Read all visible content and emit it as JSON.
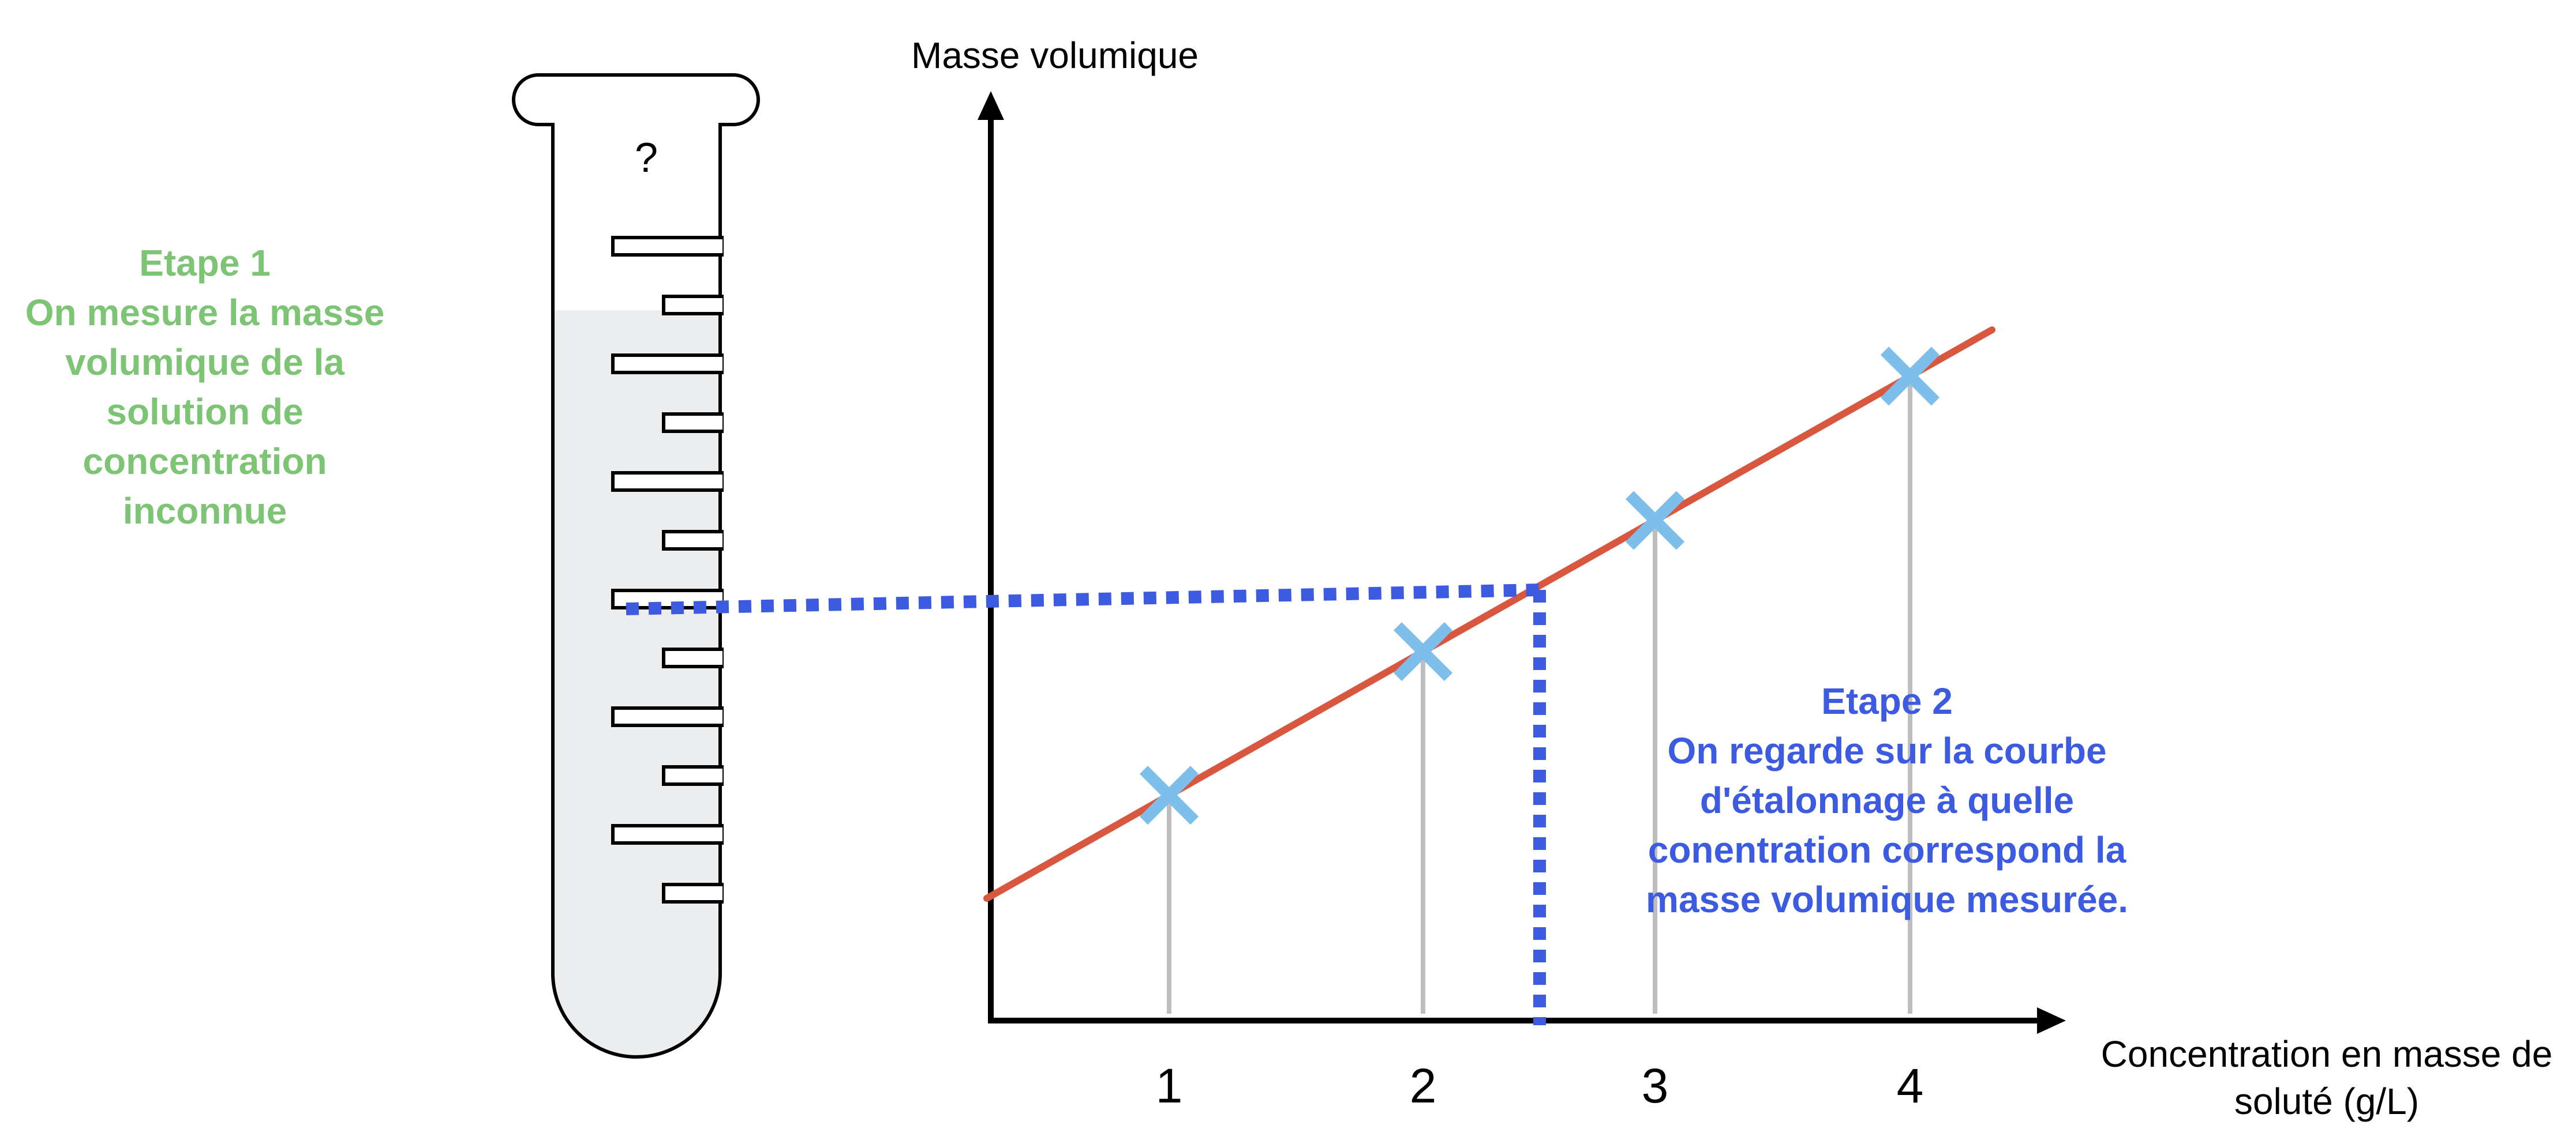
{
  "step1": {
    "lines": [
      "Etape 1",
      "On mesure la masse",
      "volumique de la",
      "solution de",
      "concentration",
      "inconnue"
    ],
    "color": "#7DC475"
  },
  "step2": {
    "lines": [
      "Etape 2",
      "On regarde sur la courbe",
      "d'étalonnage à quelle",
      "conentration correspond la",
      "masse volumique mesurée."
    ],
    "color": "#3C5BE0"
  },
  "tube": {
    "label": "?",
    "liquid_color": "#ECEDEF"
  },
  "chart_data": {
    "type": "line",
    "ylabel": "Masse volumique",
    "xlabel_lines": [
      "Concentration en masse de",
      "soluté (g/L)"
    ],
    "x_ticks": [
      "1",
      "2",
      "3",
      "4"
    ],
    "measured_points_x": [
      1,
      2,
      3,
      4
    ],
    "calibration_line_color": "#D9573F",
    "marker_color": "#7DBFEA",
    "guide_color": "#3C5BE0",
    "unknown_x": 2.45
  }
}
